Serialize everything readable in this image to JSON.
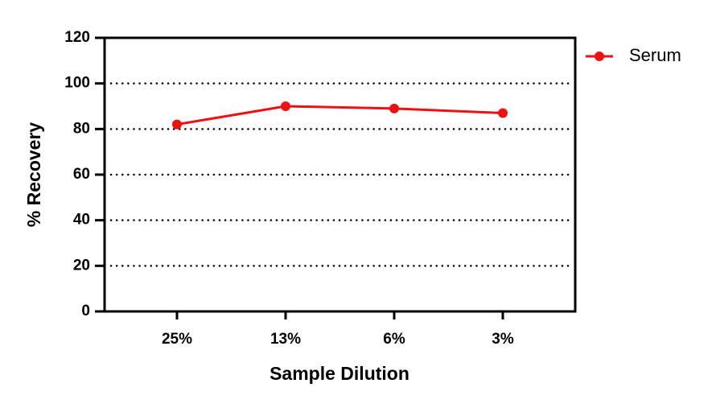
{
  "chart_data": {
    "type": "line",
    "categories": [
      "25%",
      "13%",
      "6%",
      "3%"
    ],
    "series": [
      {
        "name": "Serum",
        "color": "#ee1111",
        "values": [
          82,
          90,
          89,
          87
        ]
      }
    ],
    "xlabel": "Sample Dilution",
    "ylabel": "% Recovery",
    "ylim": [
      0,
      120
    ],
    "yticks": [
      0,
      20,
      40,
      60,
      80,
      100,
      120
    ],
    "grid": true,
    "legend": "right"
  }
}
